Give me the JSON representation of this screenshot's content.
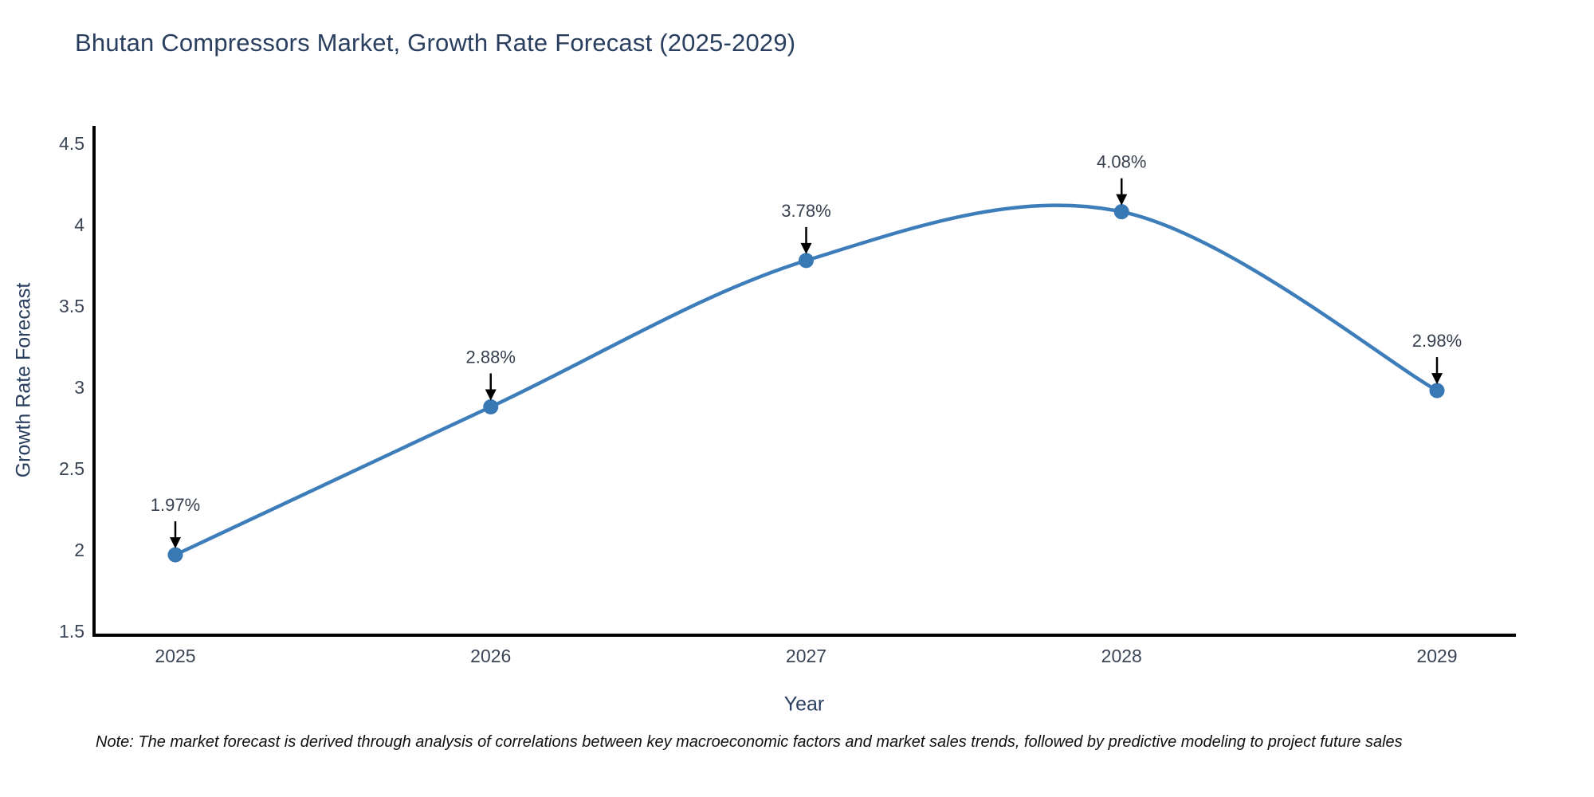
{
  "title": "Bhutan Compressors Market, Growth Rate Forecast (2025-2029)",
  "note": "Note: The market forecast is derived through analysis of correlations between key macroeconomic factors and market sales trends, followed by predictive modeling to project future sales",
  "chart_data": {
    "type": "line",
    "line_shape": "spline",
    "x": [
      2025,
      2026,
      2027,
      2028,
      2029
    ],
    "x_tick_labels": [
      "2025",
      "2026",
      "2027",
      "2028",
      "2029"
    ],
    "series": [
      {
        "name": "Growth Rate Forecast",
        "values": [
          1.97,
          2.88,
          3.78,
          4.08,
          2.98
        ]
      }
    ],
    "point_labels": [
      "1.97%",
      "2.88%",
      "3.78%",
      "4.08%",
      "2.98%"
    ],
    "title": "Bhutan Compressors Market, Growth Rate Forecast (2025-2029)",
    "xlabel": "Year",
    "ylabel": "Growth Rate Forecast",
    "y_ticks": [
      1.5,
      2,
      2.5,
      3,
      3.5,
      4,
      4.5
    ],
    "ylim": [
      1.5,
      4.62
    ],
    "xlim": [
      2024.74,
      2029.26
    ],
    "grid": false,
    "legend": false,
    "markers": true,
    "annotations_have_arrows": true,
    "colors": {
      "line": "#3d7dba",
      "marker": "#3878b4",
      "axis_line": "#000000",
      "title_text": "#2a3f5f",
      "tick_text": "#3a4556",
      "annotation_arrow": "#000000",
      "background": "#ffffff"
    }
  }
}
